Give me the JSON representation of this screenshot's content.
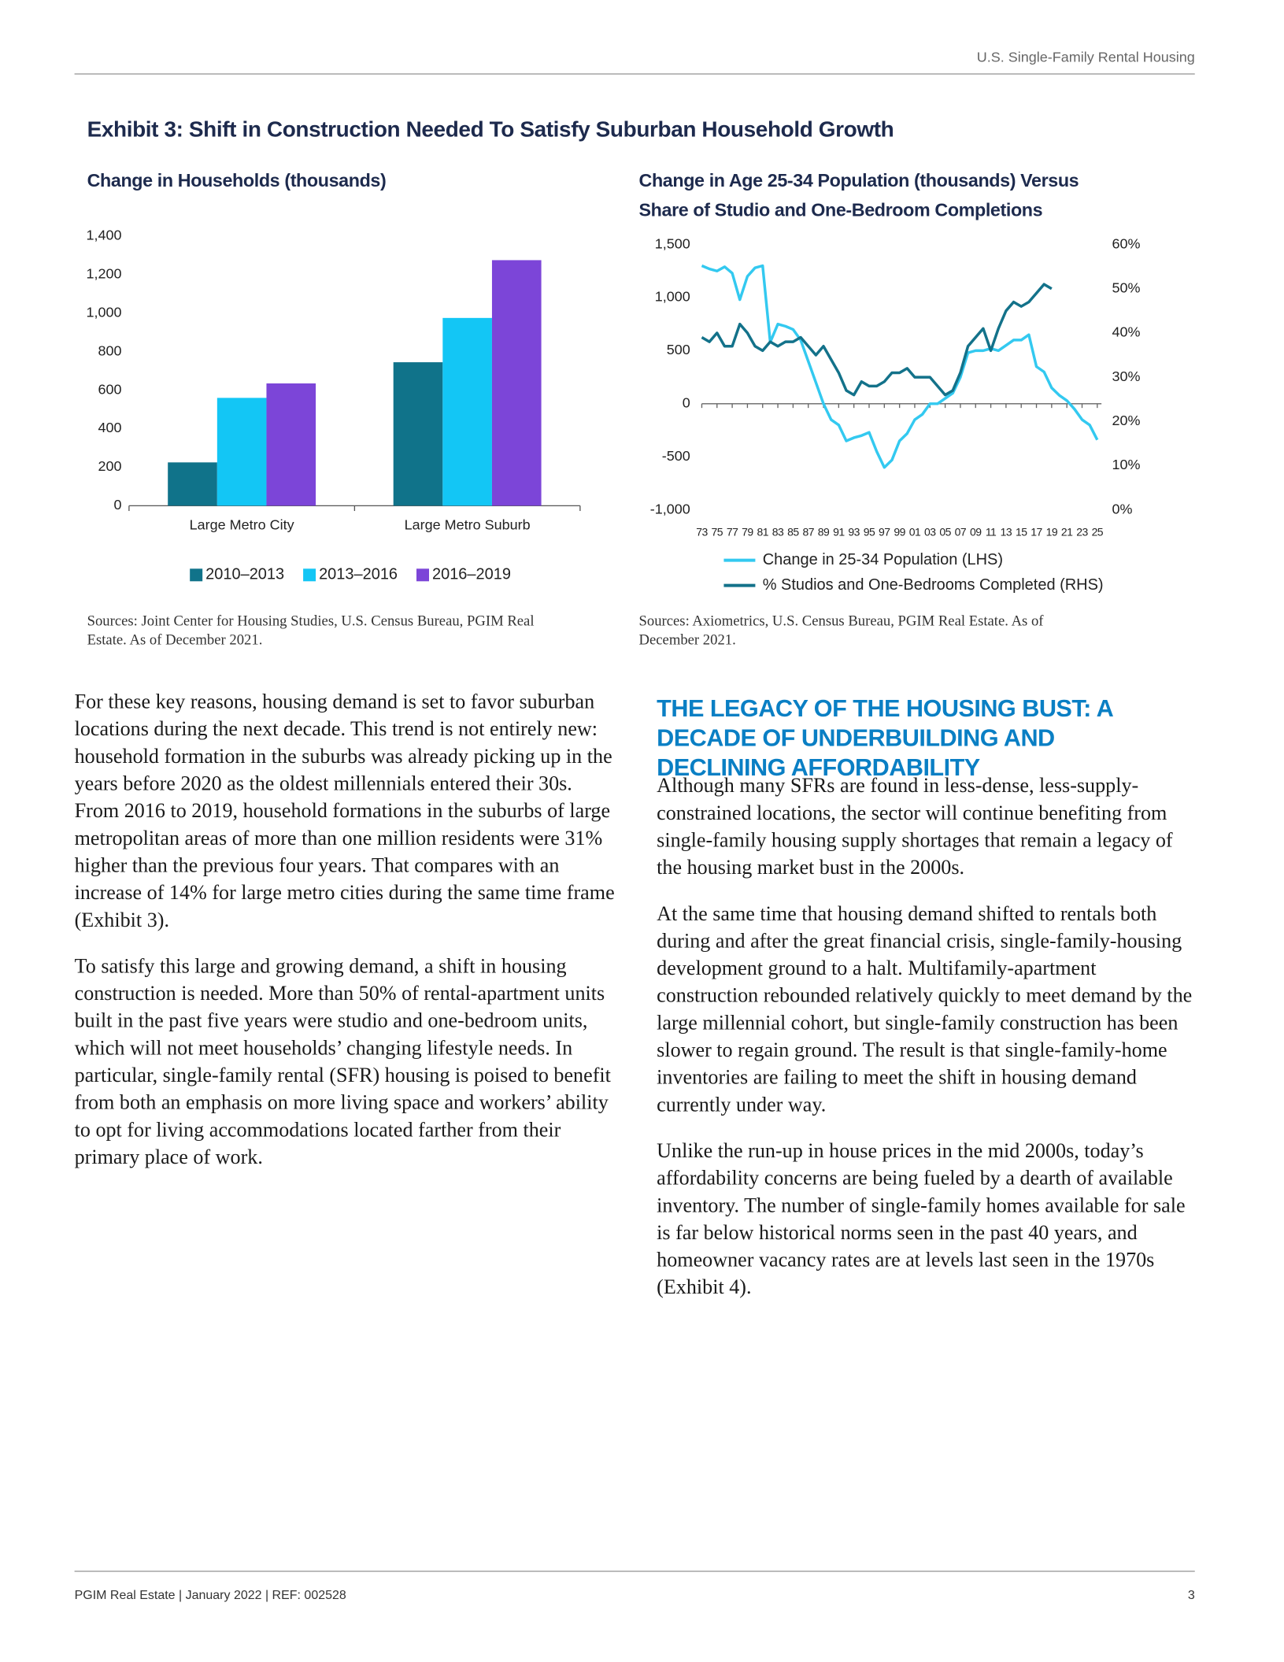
{
  "header": {
    "running_title": "U.S. Single-Family Rental Housing"
  },
  "exhibit": {
    "title": "Exhibit 3: Shift in Construction Needed To Satisfy Suburban Household Growth"
  },
  "chart_data": [
    {
      "type": "bar",
      "title": "Change in Households (thousands)",
      "categories": [
        "Large Metro City",
        "Large Metro Suburb"
      ],
      "series": [
        {
          "name": "2010–2013",
          "color": "#10738a",
          "values": [
            225,
            745
          ]
        },
        {
          "name": "2013–2016",
          "color": "#13c6f5",
          "values": [
            560,
            975
          ]
        },
        {
          "name": "2016–2019",
          "color": "#7c45d8",
          "values": [
            635,
            1275
          ]
        }
      ],
      "ylim": [
        0,
        1400
      ],
      "yticks": [
        0,
        200,
        400,
        600,
        800,
        {
          "value": 1000,
          "label": "1,000"
        },
        {
          "value": 1200,
          "label": "1,200"
        },
        {
          "value": 1400,
          "label": "1,400"
        }
      ],
      "legend": "bottom",
      "source": "Sources: Joint Center for Housing Studies, U.S. Census Bureau, PGIM Real Estate. As of December 2021."
    },
    {
      "type": "line",
      "title": "Change in Age 25-34 Population (thousands) Versus Share of Studio and One-Bedroom Completions",
      "x": [
        1973,
        1974,
        1975,
        1976,
        1977,
        1978,
        1979,
        1980,
        1981,
        1982,
        1983,
        1984,
        1985,
        1986,
        1987,
        1988,
        1989,
        1990,
        1991,
        1992,
        1993,
        1994,
        1995,
        1996,
        1997,
        1998,
        1999,
        2000,
        2001,
        2002,
        2003,
        2004,
        2005,
        2006,
        2007,
        2008,
        2009,
        2010,
        2011,
        2012,
        2013,
        2014,
        2015,
        2016,
        2017,
        2018,
        2019,
        2020,
        2021,
        2022,
        2023,
        2024,
        2025
      ],
      "xlim": [
        1973,
        2025
      ],
      "xticks": [
        {
          "value": 1973,
          "label": "73"
        },
        {
          "value": 1975,
          "label": "75"
        },
        {
          "value": 1977,
          "label": "77"
        },
        {
          "value": 1979,
          "label": "79"
        },
        {
          "value": 1981,
          "label": "81"
        },
        {
          "value": 1983,
          "label": "83"
        },
        {
          "value": 1985,
          "label": "85"
        },
        {
          "value": 1987,
          "label": "87"
        },
        {
          "value": 1989,
          "label": "89"
        },
        {
          "value": 1991,
          "label": "91"
        },
        {
          "value": 1993,
          "label": "93"
        },
        {
          "value": 1995,
          "label": "95"
        },
        {
          "value": 1997,
          "label": "97"
        },
        {
          "value": 1999,
          "label": "99"
        },
        {
          "value": 2001,
          "label": "01"
        },
        {
          "value": 2003,
          "label": "03"
        },
        {
          "value": 2005,
          "label": "05"
        },
        {
          "value": 2007,
          "label": "07"
        },
        {
          "value": 2009,
          "label": "09"
        },
        {
          "value": 2011,
          "label": "11"
        },
        {
          "value": 2013,
          "label": "13"
        },
        {
          "value": 2015,
          "label": "15"
        },
        {
          "value": 2017,
          "label": "17"
        },
        {
          "value": 2019,
          "label": "19"
        },
        {
          "value": 2021,
          "label": "21"
        },
        {
          "value": 2023,
          "label": "23"
        },
        {
          "value": 2025,
          "label": "25"
        }
      ],
      "series": [
        {
          "name": "Change in 25-34 Population (LHS)",
          "color": "#33c9f0",
          "axis": "y",
          "values": [
            1300,
            1270,
            1250,
            1290,
            1230,
            980,
            1200,
            1280,
            1300,
            580,
            750,
            730,
            700,
            600,
            400,
            200,
            0,
            -150,
            -200,
            -350,
            -320,
            -300,
            -270,
            -450,
            -600,
            -530,
            -350,
            -280,
            -150,
            -100,
            0,
            0,
            50,
            100,
            250,
            480,
            500,
            500,
            520,
            500,
            550,
            600,
            600,
            650,
            350,
            300,
            150,
            80,
            30,
            -50,
            -150,
            -200,
            -340
          ]
        },
        {
          "name": "% Studios and One-Bedrooms Completed (RHS)",
          "color": "#13728a",
          "axis": "y2",
          "values": [
            39,
            38,
            40,
            37,
            37,
            42,
            40,
            37,
            36,
            38,
            37,
            38,
            38,
            39,
            37,
            35,
            37,
            34,
            31,
            27,
            26,
            29,
            28,
            28,
            29,
            31,
            31,
            32,
            30,
            30,
            30,
            28,
            26,
            27,
            31,
            37,
            39,
            41,
            36,
            41,
            45,
            47,
            46,
            47,
            49,
            51,
            50,
            null,
            null,
            null,
            null,
            null,
            null
          ]
        }
      ],
      "ylim": [
        -1000,
        1500
      ],
      "yticks": [
        {
          "value": -1000,
          "label": "-1,000"
        },
        -500,
        0,
        500,
        {
          "value": 1000,
          "label": "1,000"
        },
        {
          "value": 1500,
          "label": "1,500"
        }
      ],
      "y2lim": [
        0,
        60
      ],
      "y2ticks": [
        {
          "value": 0,
          "label": "0%"
        },
        {
          "value": 10,
          "label": "10%"
        },
        {
          "value": 20,
          "label": "20%"
        },
        {
          "value": 30,
          "label": "30%"
        },
        {
          "value": 40,
          "label": "40%"
        },
        {
          "value": 50,
          "label": "50%"
        },
        {
          "value": 60,
          "label": "60%"
        }
      ],
      "legend": "bottom",
      "source": "Sources: Axiometrics, U.S. Census Bureau, PGIM Real Estate. As of December 2021."
    }
  ],
  "body": {
    "left_paragraphs": [
      "For these key reasons, housing demand is set to favor suburban locations during the next decade. This trend is not entirely new: household formation in the suburbs was already picking up in the years before 2020 as the oldest millennials entered their 30s. From 2016 to 2019, household formations in the suburbs of large metropolitan areas of more than one million residents were 31% higher than the previous four years. That compares with an increase of 14% for large metro cities during the same time frame (Exhibit 3).",
      "To satisfy this large and growing demand, a shift in housing construction is needed. More than 50% of rental-apartment units built in the past five years were studio and one-bedroom units, which will not meet households’ changing lifestyle needs. In particular, single-family rental (SFR) housing is poised to benefit from both an emphasis on more living space and workers’ ability to opt for living accommodations located farther from their primary place of work."
    ],
    "section_heading": "THE LEGACY OF THE HOUSING BUST: A DECADE OF UNDERBUILDING AND DECLINING AFFORDABILITY",
    "right_paragraphs": [
      "Although many SFRs are found in less-dense, less-supply-constrained locations, the sector will continue benefiting from single-family housing supply shortages that remain a legacy of the housing market bust in the 2000s.",
      "At the same time that housing demand shifted to rentals both during and after the great financial crisis, single-family-housing development ground to a halt. Multifamily-apartment construction rebounded relatively quickly to meet demand by the large millennial cohort, but single-family construction has been slower to regain ground. The result is that single-family-home inventories are failing to meet the shift in housing demand currently under way.",
      "Unlike the run-up in house prices in the mid 2000s, today’s affordability concerns are being fueled by a dearth of available inventory. The number of single-family homes available for sale is far below historical norms seen in the past 40 years, and homeowner vacancy rates are at levels last seen in the 1970s (Exhibit 4)."
    ]
  },
  "footer": {
    "text": "PGIM Real Estate | January 2022 | REF: 002528",
    "page_number": 3
  }
}
